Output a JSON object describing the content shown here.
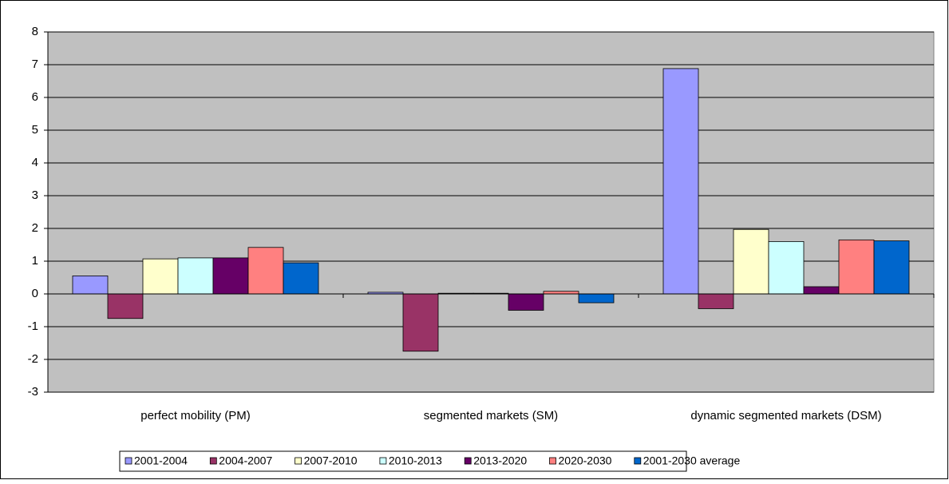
{
  "chart_data": {
    "type": "bar",
    "categories": [
      "perfect mobility (PM)",
      "segmented markets (SM)",
      "dynamic segmented markets (DSM)"
    ],
    "series": [
      {
        "name": "2001-2004",
        "color": "#9999ff",
        "values": [
          0.55,
          0.05,
          6.88
        ]
      },
      {
        "name": "2004-2007",
        "color": "#993366",
        "values": [
          -0.75,
          -1.75,
          -0.45
        ]
      },
      {
        "name": "2007-2010",
        "color": "#ffffcc",
        "values": [
          1.07,
          0.02,
          1.97
        ]
      },
      {
        "name": "2010-2013",
        "color": "#ccffff",
        "values": [
          1.1,
          0.02,
          1.6
        ]
      },
      {
        "name": "2013-2020",
        "color": "#660066",
        "values": [
          1.1,
          -0.5,
          0.22
        ]
      },
      {
        "name": "2020-2030",
        "color": "#ff8080",
        "values": [
          1.42,
          0.08,
          1.65
        ]
      },
      {
        "name": "2001-2030 average",
        "color": "#0066cc",
        "values": [
          0.95,
          -0.27,
          1.62
        ]
      }
    ],
    "ylim": [
      -3,
      8
    ],
    "yticks": [
      -3,
      -2,
      -1,
      0,
      1,
      2,
      3,
      4,
      5,
      6,
      7,
      8
    ],
    "grid": true,
    "plot_background": "#c0c0c0",
    "legend": "bottom"
  }
}
